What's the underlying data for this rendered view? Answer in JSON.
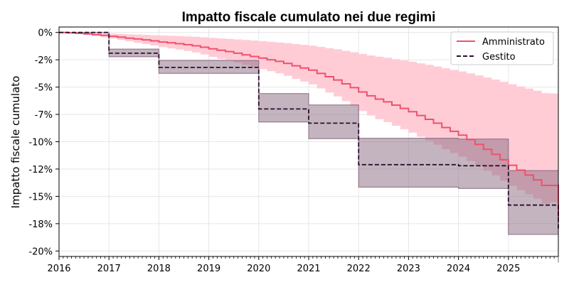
{
  "chart_data": {
    "type": "line",
    "title": "Impatto fiscale cumulato nei due regimi",
    "xlabel": "",
    "ylabel": "Impatto fiscale cumulato",
    "xlim": [
      2016,
      2026
    ],
    "ylim": [
      -0.205,
      0.005
    ],
    "x_ticks": [
      2016,
      2017,
      2018,
      2019,
      2020,
      2021,
      2022,
      2023,
      2024,
      2025
    ],
    "x_tick_labels": [
      "2016",
      "2017",
      "2018",
      "2019",
      "2020",
      "2021",
      "2022",
      "2023",
      "2024",
      "2025"
    ],
    "y_ticks": [
      0,
      -0.025,
      -0.05,
      -0.075,
      -0.1,
      -0.125,
      -0.15,
      -0.175,
      -0.2
    ],
    "y_tick_labels": [
      "0%",
      "-2%",
      "-5%",
      "-7%",
      "-10%",
      "-12%",
      "-15%",
      "-18%",
      "-20%"
    ],
    "grid": true,
    "legend_position": "top-right",
    "legend": [
      "Amministrato",
      "Gestito"
    ],
    "colors": {
      "amministrato_line": "#f0506e",
      "amministrato_band": "#ffc9d4",
      "gestito_line": "#2b1030",
      "gestito_band": "#8a6a80",
      "grid": "#e6e6e6"
    },
    "series": [
      {
        "name": "Amministrato",
        "style": "solid step",
        "x": [
          2016.0,
          2016.167,
          2016.333,
          2016.5,
          2016.667,
          2016.833,
          2017.0,
          2017.167,
          2017.333,
          2017.5,
          2017.667,
          2017.833,
          2018.0,
          2018.167,
          2018.333,
          2018.5,
          2018.667,
          2018.833,
          2019.0,
          2019.167,
          2019.333,
          2019.5,
          2019.667,
          2019.833,
          2020.0,
          2020.167,
          2020.333,
          2020.5,
          2020.667,
          2020.833,
          2021.0,
          2021.167,
          2021.333,
          2021.5,
          2021.667,
          2021.833,
          2022.0,
          2022.167,
          2022.333,
          2022.5,
          2022.667,
          2022.833,
          2023.0,
          2023.167,
          2023.333,
          2023.5,
          2023.667,
          2023.833,
          2024.0,
          2024.167,
          2024.333,
          2024.5,
          2024.667,
          2024.833,
          2025.0,
          2025.167,
          2025.333,
          2025.5,
          2025.667,
          2025.833,
          2026.0
        ],
        "values": [
          0.0,
          -0.0003,
          -0.0008,
          -0.0013,
          -0.002,
          -0.0027,
          -0.0035,
          -0.0043,
          -0.0052,
          -0.006,
          -0.0068,
          -0.0077,
          -0.0087,
          -0.0095,
          -0.0103,
          -0.0112,
          -0.0122,
          -0.0135,
          -0.015,
          -0.0163,
          -0.0175,
          -0.019,
          -0.0205,
          -0.022,
          -0.0235,
          -0.025,
          -0.0265,
          -0.0283,
          -0.0305,
          -0.0325,
          -0.0345,
          -0.0375,
          -0.0405,
          -0.0435,
          -0.047,
          -0.0505,
          -0.0545,
          -0.058,
          -0.061,
          -0.0635,
          -0.0665,
          -0.0695,
          -0.0725,
          -0.076,
          -0.0795,
          -0.083,
          -0.087,
          -0.0905,
          -0.094,
          -0.098,
          -0.1025,
          -0.107,
          -0.1115,
          -0.1165,
          -0.1215,
          -0.126,
          -0.1305,
          -0.135,
          -0.14,
          -0.14,
          -0.17
        ]
      },
      {
        "name": "Gestito",
        "style": "dashed step",
        "x": [
          2016,
          2017,
          2018,
          2019,
          2020,
          2021,
          2022,
          2023,
          2024,
          2025,
          2026
        ],
        "values": [
          0.0,
          -0.019,
          -0.032,
          -0.032,
          -0.07,
          -0.083,
          -0.121,
          -0.121,
          -0.122,
          -0.158,
          -0.18
        ]
      }
    ]
  }
}
